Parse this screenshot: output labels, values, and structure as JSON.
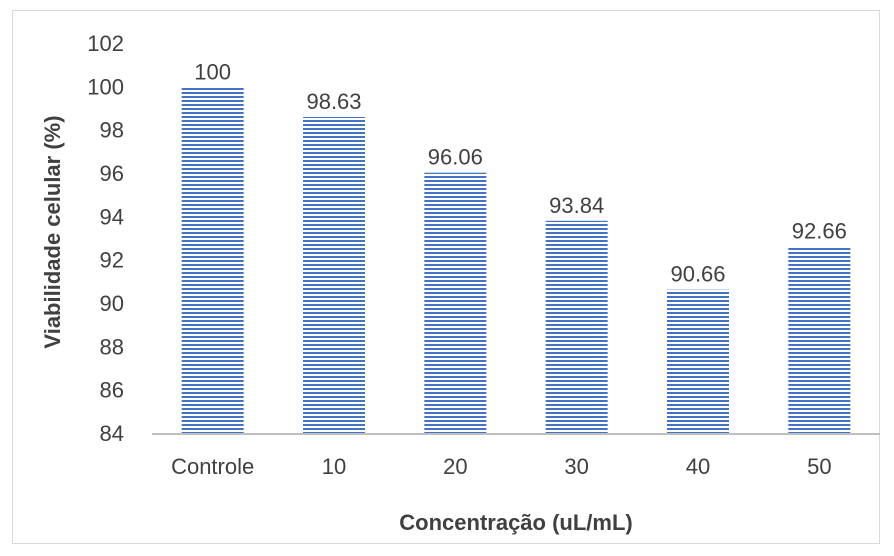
{
  "chart_data": {
    "type": "bar",
    "title": "",
    "xlabel": "Concentração (uL/mL)",
    "ylabel": "Viabilidade celular (%)",
    "categories": [
      "Controle",
      "10",
      "20",
      "30",
      "40",
      "50"
    ],
    "values": [
      100,
      98.63,
      96.06,
      93.84,
      90.66,
      92.66
    ],
    "data_labels": [
      "100",
      "98.63",
      "96.06",
      "93.84",
      "90.66",
      "92.66"
    ],
    "ylim": [
      84,
      102
    ],
    "yticks": [
      "84",
      "86",
      "88",
      "90",
      "92",
      "94",
      "96",
      "98",
      "100",
      "102"
    ],
    "grid": false,
    "legend": "none",
    "bar_color": "#4472c4",
    "bar_pattern": "horizontal-stripes"
  }
}
